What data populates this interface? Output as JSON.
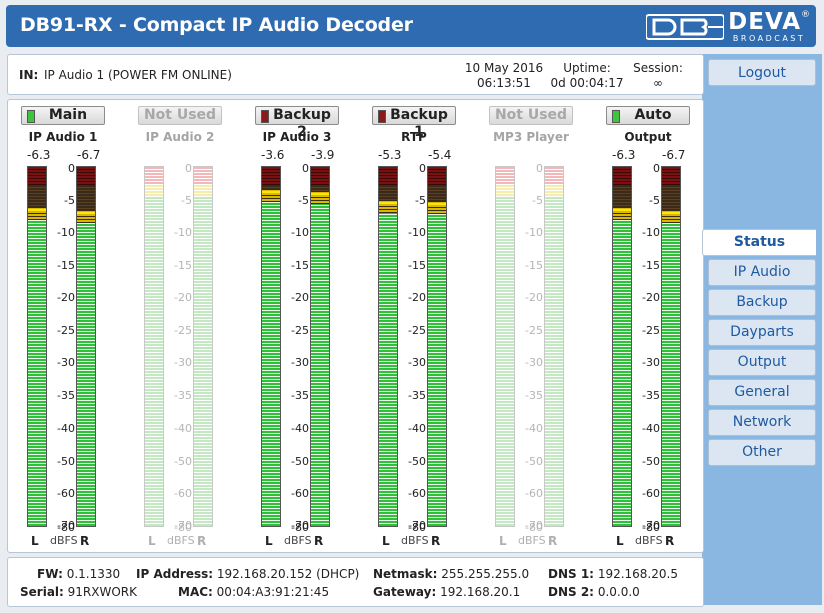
{
  "header": {
    "title": "DB91-RX - Compact IP Audio Decoder",
    "logo": {
      "name": "DEVA",
      "sub": "BROADCAST"
    }
  },
  "info": {
    "input_label": "IN:",
    "input_value": "IP Audio 1 (POWER FM ONLINE)",
    "date": "10 May 2016",
    "time": "06:13:51",
    "uptime_label": "Uptime:",
    "uptime_value": "0d 00:04:17",
    "session_label": "Session:",
    "session_value": "∞"
  },
  "logout_label": "Logout",
  "channels": [
    {
      "button": "Main",
      "led": "#3ec43e",
      "name": "IP Audio 1",
      "peak_l": "-6.3",
      "peak_r": "-6.7",
      "enabled": true
    },
    {
      "button": "Not Used",
      "led": "",
      "name": "IP Audio 2",
      "peak_l": "",
      "peak_r": "",
      "enabled": false
    },
    {
      "button": "Backup 2",
      "led": "#8b1a1a",
      "name": "IP Audio 3",
      "peak_l": "-3.6",
      "peak_r": "-3.9",
      "enabled": true
    },
    {
      "button": "Backup 1",
      "led": "#8b1a1a",
      "name": "RTP",
      "peak_l": "-5.3",
      "peak_r": "-5.4",
      "enabled": true
    },
    {
      "button": "Not Used",
      "led": "",
      "name": "MP3 Player",
      "peak_l": "",
      "peak_r": "",
      "enabled": false
    },
    {
      "button": "Auto",
      "led": "#3ec43e",
      "name": "Output",
      "peak_l": "-6.3",
      "peak_r": "-6.7",
      "enabled": true
    }
  ],
  "meter_scale": [
    "0",
    "-5",
    "-10",
    "-15",
    "-20",
    "-25",
    "-30",
    "-35",
    "-40",
    "-50",
    "-60",
    "-70",
    "-80"
  ],
  "meter_foot": {
    "left": "L",
    "unit": "dBFS",
    "right": "R"
  },
  "nav": {
    "items": [
      {
        "label": "Status",
        "active": true
      },
      {
        "label": "IP Audio",
        "active": false
      },
      {
        "label": "Backup",
        "active": false
      },
      {
        "label": "Dayparts",
        "active": false
      },
      {
        "label": "Output",
        "active": false
      },
      {
        "label": "General",
        "active": false
      },
      {
        "label": "Network",
        "active": false
      },
      {
        "label": "Other",
        "active": false
      }
    ]
  },
  "footer": {
    "fw_label": "FW:",
    "fw_value": "0.1.1330",
    "serial_label": "Serial:",
    "serial_value": "91RXWORK",
    "ip_label": "IP Address:",
    "ip_value": "192.168.20.152 (DHCP)",
    "mac_label": "MAC:",
    "mac_value": "00:04:A3:91:21:45",
    "netmask_label": "Netmask:",
    "netmask_value": "255.255.255.0",
    "gateway_label": "Gateway:",
    "gateway_value": "192.168.20.1",
    "dns1_label": "DNS 1:",
    "dns1_value": "192.168.20.5",
    "dns2_label": "DNS 2:",
    "dns2_value": "0.0.0.0"
  },
  "colors": {
    "header_bg": "#2f6bb0",
    "sidebar_bg": "#8ab7e1",
    "meter_green": "#2fbf3a",
    "link": "#1e5aa0"
  }
}
